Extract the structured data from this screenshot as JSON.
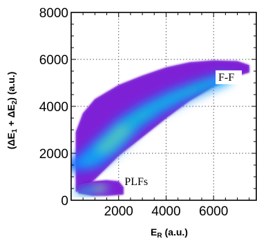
{
  "chart_data": {
    "type": "heatmap",
    "title": "",
    "xlabel": "E_R (a.u.)",
    "xlabel_parts": {
      "main": "E",
      "sub": "R",
      "unit": " (a.u.)"
    },
    "ylabel": "(ΔE_1 + ΔE_2) (a.u.)",
    "ylabel_parts": {
      "open": "(ΔE",
      "sub1": "1",
      "mid": " + ΔE",
      "sub2": "2",
      "close": ") (a.u.)"
    },
    "xlim": [
      0,
      7800
    ],
    "ylim": [
      0,
      8000
    ],
    "x_ticks": [
      2000,
      4000,
      6000
    ],
    "x_tick_labels": [
      "2000",
      "4000",
      "6000"
    ],
    "y_ticks": [
      0,
      2000,
      4000,
      6000,
      8000
    ],
    "y_tick_labels": [
      "0",
      "2000",
      "4000",
      "6000",
      "8000"
    ],
    "grid": true,
    "color_scale": [
      "#5a00b4",
      "#8a2be2",
      "#1e5bff",
      "#00c8ff",
      "#00e676",
      "#d4ff00",
      "#ffb000",
      "#ff4500"
    ],
    "regions": [
      {
        "name": "F-F",
        "label": "F-F",
        "label_at": [
          6200,
          5150
        ],
        "upper_edge": [
          [
            200,
            2900
          ],
          [
            500,
            3700
          ],
          [
            1000,
            4300
          ],
          [
            2000,
            4900
          ],
          [
            3000,
            5300
          ],
          [
            4000,
            5650
          ],
          [
            5000,
            5870
          ],
          [
            6000,
            5950
          ],
          [
            7000,
            5920
          ],
          [
            7500,
            5750
          ]
        ],
        "lower_edge": [
          [
            7500,
            5450
          ],
          [
            7000,
            5300
          ],
          [
            6000,
            4850
          ],
          [
            5000,
            4250
          ],
          [
            4000,
            3500
          ],
          [
            3000,
            2700
          ],
          [
            2000,
            1900
          ],
          [
            1000,
            900
          ],
          [
            500,
            500
          ],
          [
            200,
            350
          ]
        ],
        "intensity_ridge": [
          [
            200,
            1500,
            0.55
          ],
          [
            800,
            1700,
            0.95
          ],
          [
            1500,
            2300,
            1.0
          ],
          [
            2500,
            3300,
            0.85
          ],
          [
            3500,
            3950,
            0.75
          ],
          [
            4500,
            4450,
            0.7
          ],
          [
            5500,
            4850,
            0.5
          ],
          [
            6500,
            5200,
            0.25
          ]
        ]
      },
      {
        "name": "PLFs",
        "label": "PLFs",
        "label_at": [
          2250,
          700
        ],
        "upper_edge": [
          [
            300,
            650
          ],
          [
            900,
            800
          ],
          [
            1500,
            850
          ],
          [
            2000,
            800
          ],
          [
            2200,
            550
          ]
        ],
        "lower_edge": [
          [
            2200,
            250
          ],
          [
            1500,
            200
          ],
          [
            900,
            200
          ],
          [
            300,
            300
          ]
        ],
        "intensity_ridge": [
          [
            500,
            350,
            0.6
          ],
          [
            1400,
            550,
            0.55
          ]
        ]
      }
    ]
  }
}
